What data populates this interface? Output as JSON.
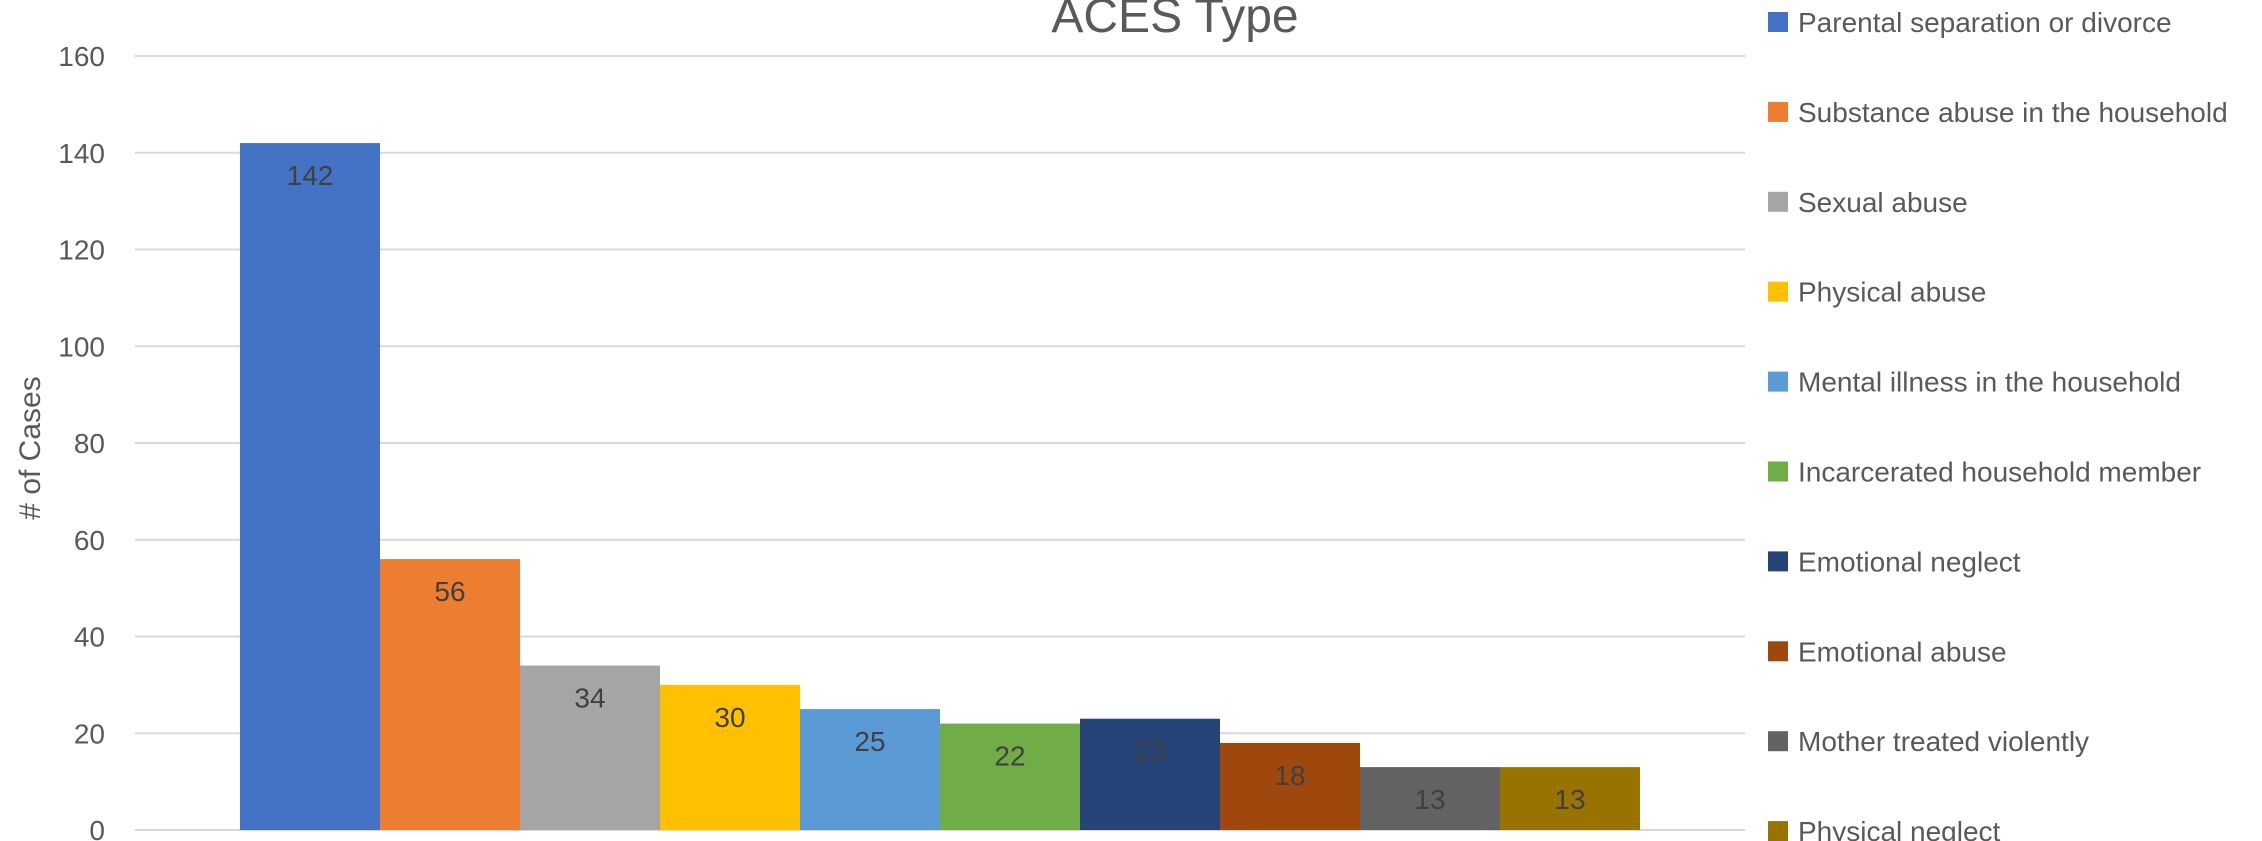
{
  "chart_data": {
    "type": "bar",
    "title": "ACES Type",
    "xlabel": "",
    "ylabel": "# of Cases",
    "ylim": [
      0,
      160
    ],
    "yticks": [
      0,
      20,
      40,
      60,
      80,
      100,
      120,
      140,
      160
    ],
    "grid": true,
    "legend_position": "right",
    "series": [
      {
        "name": "Parental separation or divorce",
        "value": 142,
        "label": "142",
        "color": "#4472C4"
      },
      {
        "name": "Substance abuse in the household",
        "value": 56,
        "label": "56",
        "color": "#ED7D31"
      },
      {
        "name": "Sexual abuse",
        "value": 34,
        "label": "34",
        "color": "#A5A5A5"
      },
      {
        "name": "Physical abuse",
        "value": 30,
        "label": "30",
        "color": "#FFC000"
      },
      {
        "name": "Mental illness in the household",
        "value": 25,
        "label": "25",
        "color": "#5B9BD5"
      },
      {
        "name": "Incarcerated household member",
        "value": 22,
        "label": "22",
        "color": "#70AD47"
      },
      {
        "name": "Emotional neglect",
        "value": 23,
        "label": "23",
        "color": "#264478"
      },
      {
        "name": "Emotional abuse",
        "value": 18,
        "label": "18",
        "color": "#9E480E"
      },
      {
        "name": "Mother treated violently",
        "value": 13,
        "label": "13",
        "color": "#636363"
      },
      {
        "name": "Physical neglect",
        "value": 13,
        "label": "13",
        "color": "#997300"
      }
    ]
  }
}
